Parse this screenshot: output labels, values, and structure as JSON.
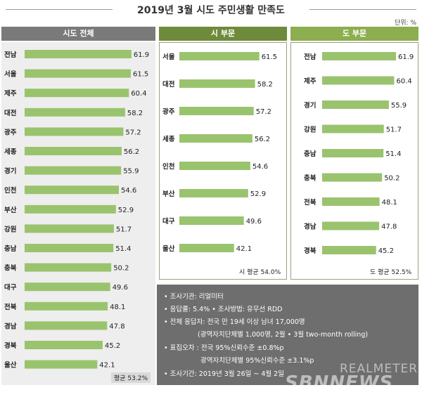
{
  "title": "2019년 3월 시도 주민생활 만족도",
  "unit_label": "단위: %",
  "chart_data": [
    {
      "type": "bar",
      "title": "시도 전체",
      "categories": [
        "전남",
        "서울",
        "제주",
        "대전",
        "광주",
        "세종",
        "경기",
        "인천",
        "부산",
        "강원",
        "충남",
        "충북",
        "대구",
        "전북",
        "경남",
        "경북",
        "울산"
      ],
      "values": [
        61.9,
        61.5,
        60.4,
        58.2,
        57.2,
        56.2,
        55.9,
        54.6,
        52.9,
        51.7,
        51.4,
        50.2,
        49.6,
        48.1,
        47.8,
        45.2,
        42.1
      ],
      "average_label": "평균 53.2%",
      "xlim": [
        0,
        66
      ],
      "color": "#9ac36e"
    },
    {
      "type": "bar",
      "title": "시 부문",
      "categories": [
        "서울",
        "대전",
        "광주",
        "세종",
        "인천",
        "부산",
        "대구",
        "울산"
      ],
      "values": [
        61.5,
        58.2,
        57.2,
        56.2,
        54.6,
        52.9,
        49.6,
        42.1
      ],
      "average_label": "시 평균 54.0%",
      "xlim": [
        0,
        66
      ],
      "color": "#9ac36e"
    },
    {
      "type": "bar",
      "title": "도 부문",
      "categories": [
        "전남",
        "제주",
        "경기",
        "강원",
        "충남",
        "충북",
        "전북",
        "경남",
        "경북"
      ],
      "values": [
        61.9,
        60.4,
        55.9,
        51.7,
        51.4,
        50.2,
        48.1,
        47.8,
        45.2
      ],
      "average_label": "도 평균 52.5%",
      "xlim": [
        0,
        66
      ],
      "color": "#9ac36e"
    }
  ],
  "info": {
    "lines": [
      "• 조사기관: 리얼미터",
      "• 응답률: 5.4% • 조사방법: 유무선 RDD",
      "• 전체 응답자: 전국 만 19세 이상 남녀 17,000명",
      "(광역자치단체별 1,000명, 2월 • 3월 two-month rolling)",
      "• 표집오차 : 전국 95%신뢰수준 ±0.8%p",
      "광역자치단체별 95%신뢰수준 ±3.1%p",
      "• 조사기간: 2019년 3월 26일 ~ 4월 2일"
    ]
  },
  "watermarks": {
    "realmeter": "REALMETER",
    "sbn": "SBNNEWS"
  }
}
